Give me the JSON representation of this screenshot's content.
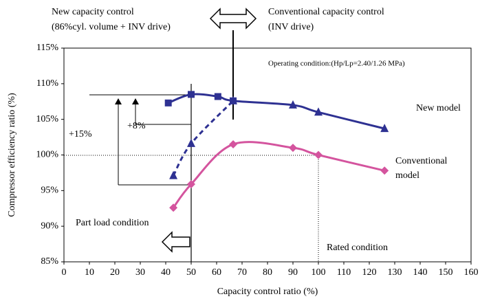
{
  "chart_data": {
    "type": "line",
    "xlabel": "Capacity control ratio (%)",
    "ylabel": "Compressor efficiency ratio (%)",
    "xlim": [
      0,
      160
    ],
    "xticks": [
      0,
      10,
      20,
      30,
      40,
      50,
      60,
      70,
      80,
      90,
      100,
      110,
      120,
      130,
      140,
      150,
      160
    ],
    "ylim": [
      85,
      115
    ],
    "yticks": [
      {
        "value": 85,
        "label": "85%"
      },
      {
        "value": 90,
        "label": "90%"
      },
      {
        "value": 95,
        "label": "95%"
      },
      {
        "value": 100,
        "label": "100%"
      },
      {
        "value": 105,
        "label": "105%"
      },
      {
        "value": 110,
        "label": "110%"
      },
      {
        "value": 115,
        "label": "115%"
      }
    ],
    "grid": false,
    "series": [
      {
        "color": "#2e3192",
        "dashed": false,
        "markers": [
          "square",
          "square",
          "square",
          "square",
          "triangle",
          "triangle",
          "triangle"
        ],
        "x": [
          41,
          50,
          60.5,
          66.5,
          90,
          100,
          126
        ],
        "values": [
          107.3,
          108.5,
          108.2,
          107.6,
          107,
          106,
          103.7
        ]
      },
      {
        "color": "#2e3192",
        "dashed": true,
        "markers": [
          "triangle",
          "triangle",
          "triangle"
        ],
        "x": [
          43,
          50,
          66.5
        ],
        "values": [
          97.1,
          101.6,
          107.6
        ]
      },
      {
        "color": "#d4549e",
        "dashed": false,
        "markers": [
          "diamond",
          "diamond",
          "diamond",
          "diamond",
          "diamond",
          "diamond"
        ],
        "x": [
          43,
          50,
          66.5,
          90,
          100,
          126
        ],
        "values": [
          92.6,
          95.9,
          101.5,
          101,
          100,
          97.8
        ]
      }
    ],
    "annotations": [
      "New capacity control",
      "(86%cyl. volume + INV drive)",
      "Conventional capacity control",
      "(INV drive)",
      "Operating condition:(Hp/Lp=2.40/1.26 MPa)",
      "New model",
      "Conventional",
      "model",
      "+15%",
      "+8%",
      "Part load condition",
      "Rated condition"
    ]
  }
}
